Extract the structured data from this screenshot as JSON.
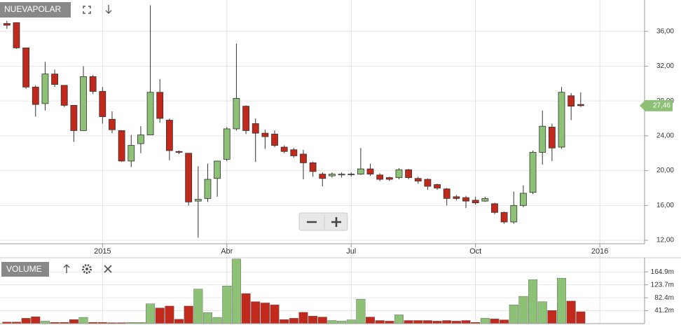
{
  "chart_data": [
    {
      "type": "candlestick",
      "title": "NUEVAPOLAR",
      "categories": [
        null,
        null,
        null,
        null,
        null,
        null,
        null,
        null,
        null,
        null,
        "2015",
        null,
        null,
        null,
        null,
        null,
        null,
        null,
        null,
        null,
        null,
        null,
        null,
        "Abr",
        null,
        null,
        null,
        null,
        null,
        null,
        null,
        null,
        null,
        null,
        null,
        null,
        "Jul",
        null,
        null,
        null,
        null,
        null,
        null,
        null,
        null,
        null,
        null,
        null,
        null,
        "Oct",
        null,
        null,
        null,
        null,
        null,
        null,
        null,
        null,
        null,
        null,
        null,
        null,
        "2016"
      ],
      "open": [
        36.9,
        37.0,
        34.1,
        29.6,
        27.7,
        31.1,
        29.8,
        27.5,
        24.6,
        30.8,
        29.1,
        25.9,
        24.6,
        21.1,
        23.1,
        24.1,
        29.0,
        25.8,
        22.2,
        22.0,
        16.5,
        16.8,
        19.1,
        21.3,
        24.8,
        27.4,
        25.4,
        24.3,
        24.2,
        22.7,
        22.4,
        21.9,
        20.9,
        19.6,
        19.4,
        19.5,
        19.6,
        19.6,
        20.2,
        19.5,
        19.2,
        19.2,
        20.1,
        19.1,
        19.0,
        18.4,
        17.9,
        17.0,
        16.9,
        16.6,
        16.5,
        16.2,
        15.2,
        14.1,
        16.0,
        17.5,
        22.1,
        25.0,
        22.7,
        28.6,
        27.6,
        null,
        null
      ],
      "high": [
        37.2,
        37.0,
        34.1,
        29.8,
        32.5,
        31.6,
        29.8,
        27.5,
        32.0,
        31.0,
        29.6,
        26.8,
        24.6,
        24.1,
        25.1,
        39.0,
        30.5,
        26.0,
        22.3,
        22.0,
        20.5,
        20.8,
        21.1,
        25.0,
        34.6,
        27.5,
        26.0,
        24.7,
        24.6,
        22.9,
        22.6,
        22.4,
        21.0,
        19.8,
        19.8,
        19.8,
        19.8,
        22.6,
        20.8,
        19.7,
        19.3,
        20.3,
        20.2,
        19.3,
        19.1,
        18.5,
        18.0,
        17.2,
        17.1,
        17.0,
        17.0,
        16.3,
        15.3,
        17.6,
        18.3,
        22.3,
        26.9,
        25.4,
        29.6,
        28.9,
        29.0,
        null,
        null
      ],
      "low": [
        36.3,
        34.0,
        29.4,
        26.2,
        26.9,
        29.6,
        27.3,
        23.3,
        24.6,
        28.8,
        25.4,
        24.3,
        21.0,
        20.4,
        22.0,
        24.1,
        25.5,
        21.2,
        21.9,
        16.0,
        12.3,
        16.4,
        17.0,
        21.1,
        24.6,
        24.2,
        21.0,
        22.5,
        22.7,
        22.0,
        21.5,
        19.0,
        19.3,
        18.2,
        19.2,
        19.2,
        19.3,
        19.5,
        19.4,
        18.8,
        18.8,
        19.0,
        19.0,
        18.5,
        17.8,
        17.8,
        16.0,
        16.6,
        15.7,
        16.1,
        16.4,
        15.0,
        13.9,
        13.9,
        15.8,
        17.3,
        20.7,
        21.1,
        22.5,
        25.8,
        27.3,
        null,
        null
      ],
      "close": [
        36.7,
        34.1,
        29.6,
        27.6,
        31.1,
        29.9,
        27.5,
        24.6,
        30.8,
        29.1,
        26.2,
        24.7,
        21.1,
        22.9,
        24.1,
        29.0,
        26.0,
        22.3,
        22.1,
        16.4,
        16.7,
        19.0,
        21.1,
        24.8,
        28.3,
        24.6,
        24.3,
        23.9,
        22.9,
        22.2,
        21.7,
        20.9,
        19.9,
        19.1,
        19.6,
        19.6,
        19.6,
        20.2,
        19.6,
        19.0,
        19.0,
        20.1,
        19.2,
        18.8,
        18.2,
        18.0,
        16.8,
        16.8,
        16.5,
        16.3,
        16.8,
        15.2,
        14.1,
        16.0,
        17.4,
        22.1,
        25.1,
        22.6,
        29.0,
        27.4,
        27.46,
        null,
        null
      ],
      "up_color": "#8cc176",
      "down_color": "#c0291b",
      "last_price": {
        "value": 27.46,
        "label": "27,46"
      },
      "ylim": [
        11.6,
        39.6
      ],
      "yticks": [
        {
          "value": 12,
          "label": "12,00"
        },
        {
          "value": 16,
          "label": "16,00"
        },
        {
          "value": 20,
          "label": "20,00"
        },
        {
          "value": 24,
          "label": "24,00"
        },
        {
          "value": 28,
          "label": "28,00"
        },
        {
          "value": 32,
          "label": "32,00"
        },
        {
          "value": 36,
          "label": "36,00"
        }
      ],
      "grid": true
    },
    {
      "type": "bar",
      "title": "VOLUME",
      "values": [
        5,
        5,
        17,
        22,
        8,
        4,
        4,
        13,
        20,
        4,
        4,
        3,
        3,
        4,
        4,
        63,
        50,
        56,
        14,
        56,
        110,
        35,
        20,
        120,
        206,
        96,
        70,
        66,
        60,
        13,
        17,
        36,
        24,
        21,
        10,
        8,
        12,
        78,
        21,
        10,
        8,
        28,
        10,
        10,
        10,
        8,
        10,
        8,
        10,
        4,
        17,
        15,
        12,
        60,
        87,
        140,
        70,
        42,
        145,
        72,
        38,
        null,
        null
      ],
      "ylim": [
        0,
        210
      ],
      "yticks": [
        {
          "value": 41.2,
          "label": "41.2m"
        },
        {
          "value": 82.4,
          "label": "82.4m"
        },
        {
          "value": 123.7,
          "label": "123.7m"
        },
        {
          "value": 164.9,
          "label": "164.9m"
        }
      ],
      "grid": true
    }
  ]
}
